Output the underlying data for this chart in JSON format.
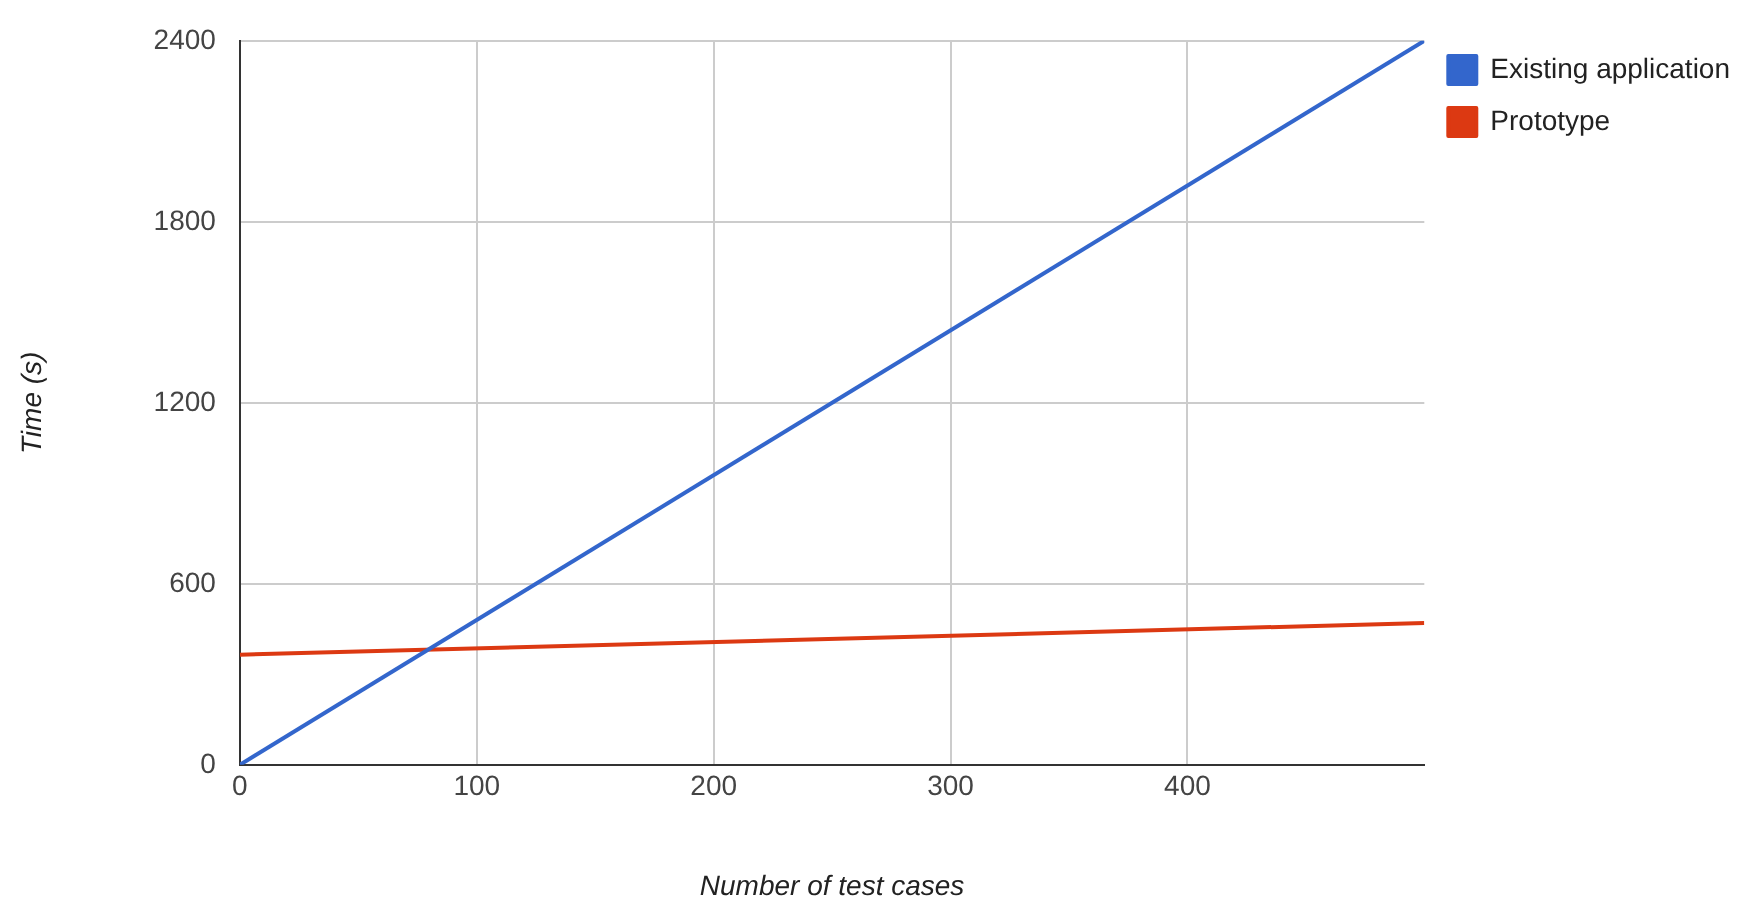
{
  "chart_data": {
    "type": "line",
    "xlabel": "Number of test cases",
    "ylabel": "Time (s)",
    "x": [
      0,
      500
    ],
    "series": [
      {
        "name": "Existing application",
        "color": "#3366cc",
        "values": [
          0,
          2400
        ]
      },
      {
        "name": "Prototype",
        "color": "#dc3912",
        "values": [
          365,
          470
        ]
      }
    ],
    "xlim": [
      0,
      500
    ],
    "xticks": [
      0,
      100,
      200,
      300,
      400
    ],
    "ylim": [
      0,
      2400
    ],
    "yticks": [
      0,
      600,
      1200,
      1800,
      2400
    ],
    "grid": true,
    "legend": "top right",
    "marker": "none",
    "line_style": "solid"
  }
}
